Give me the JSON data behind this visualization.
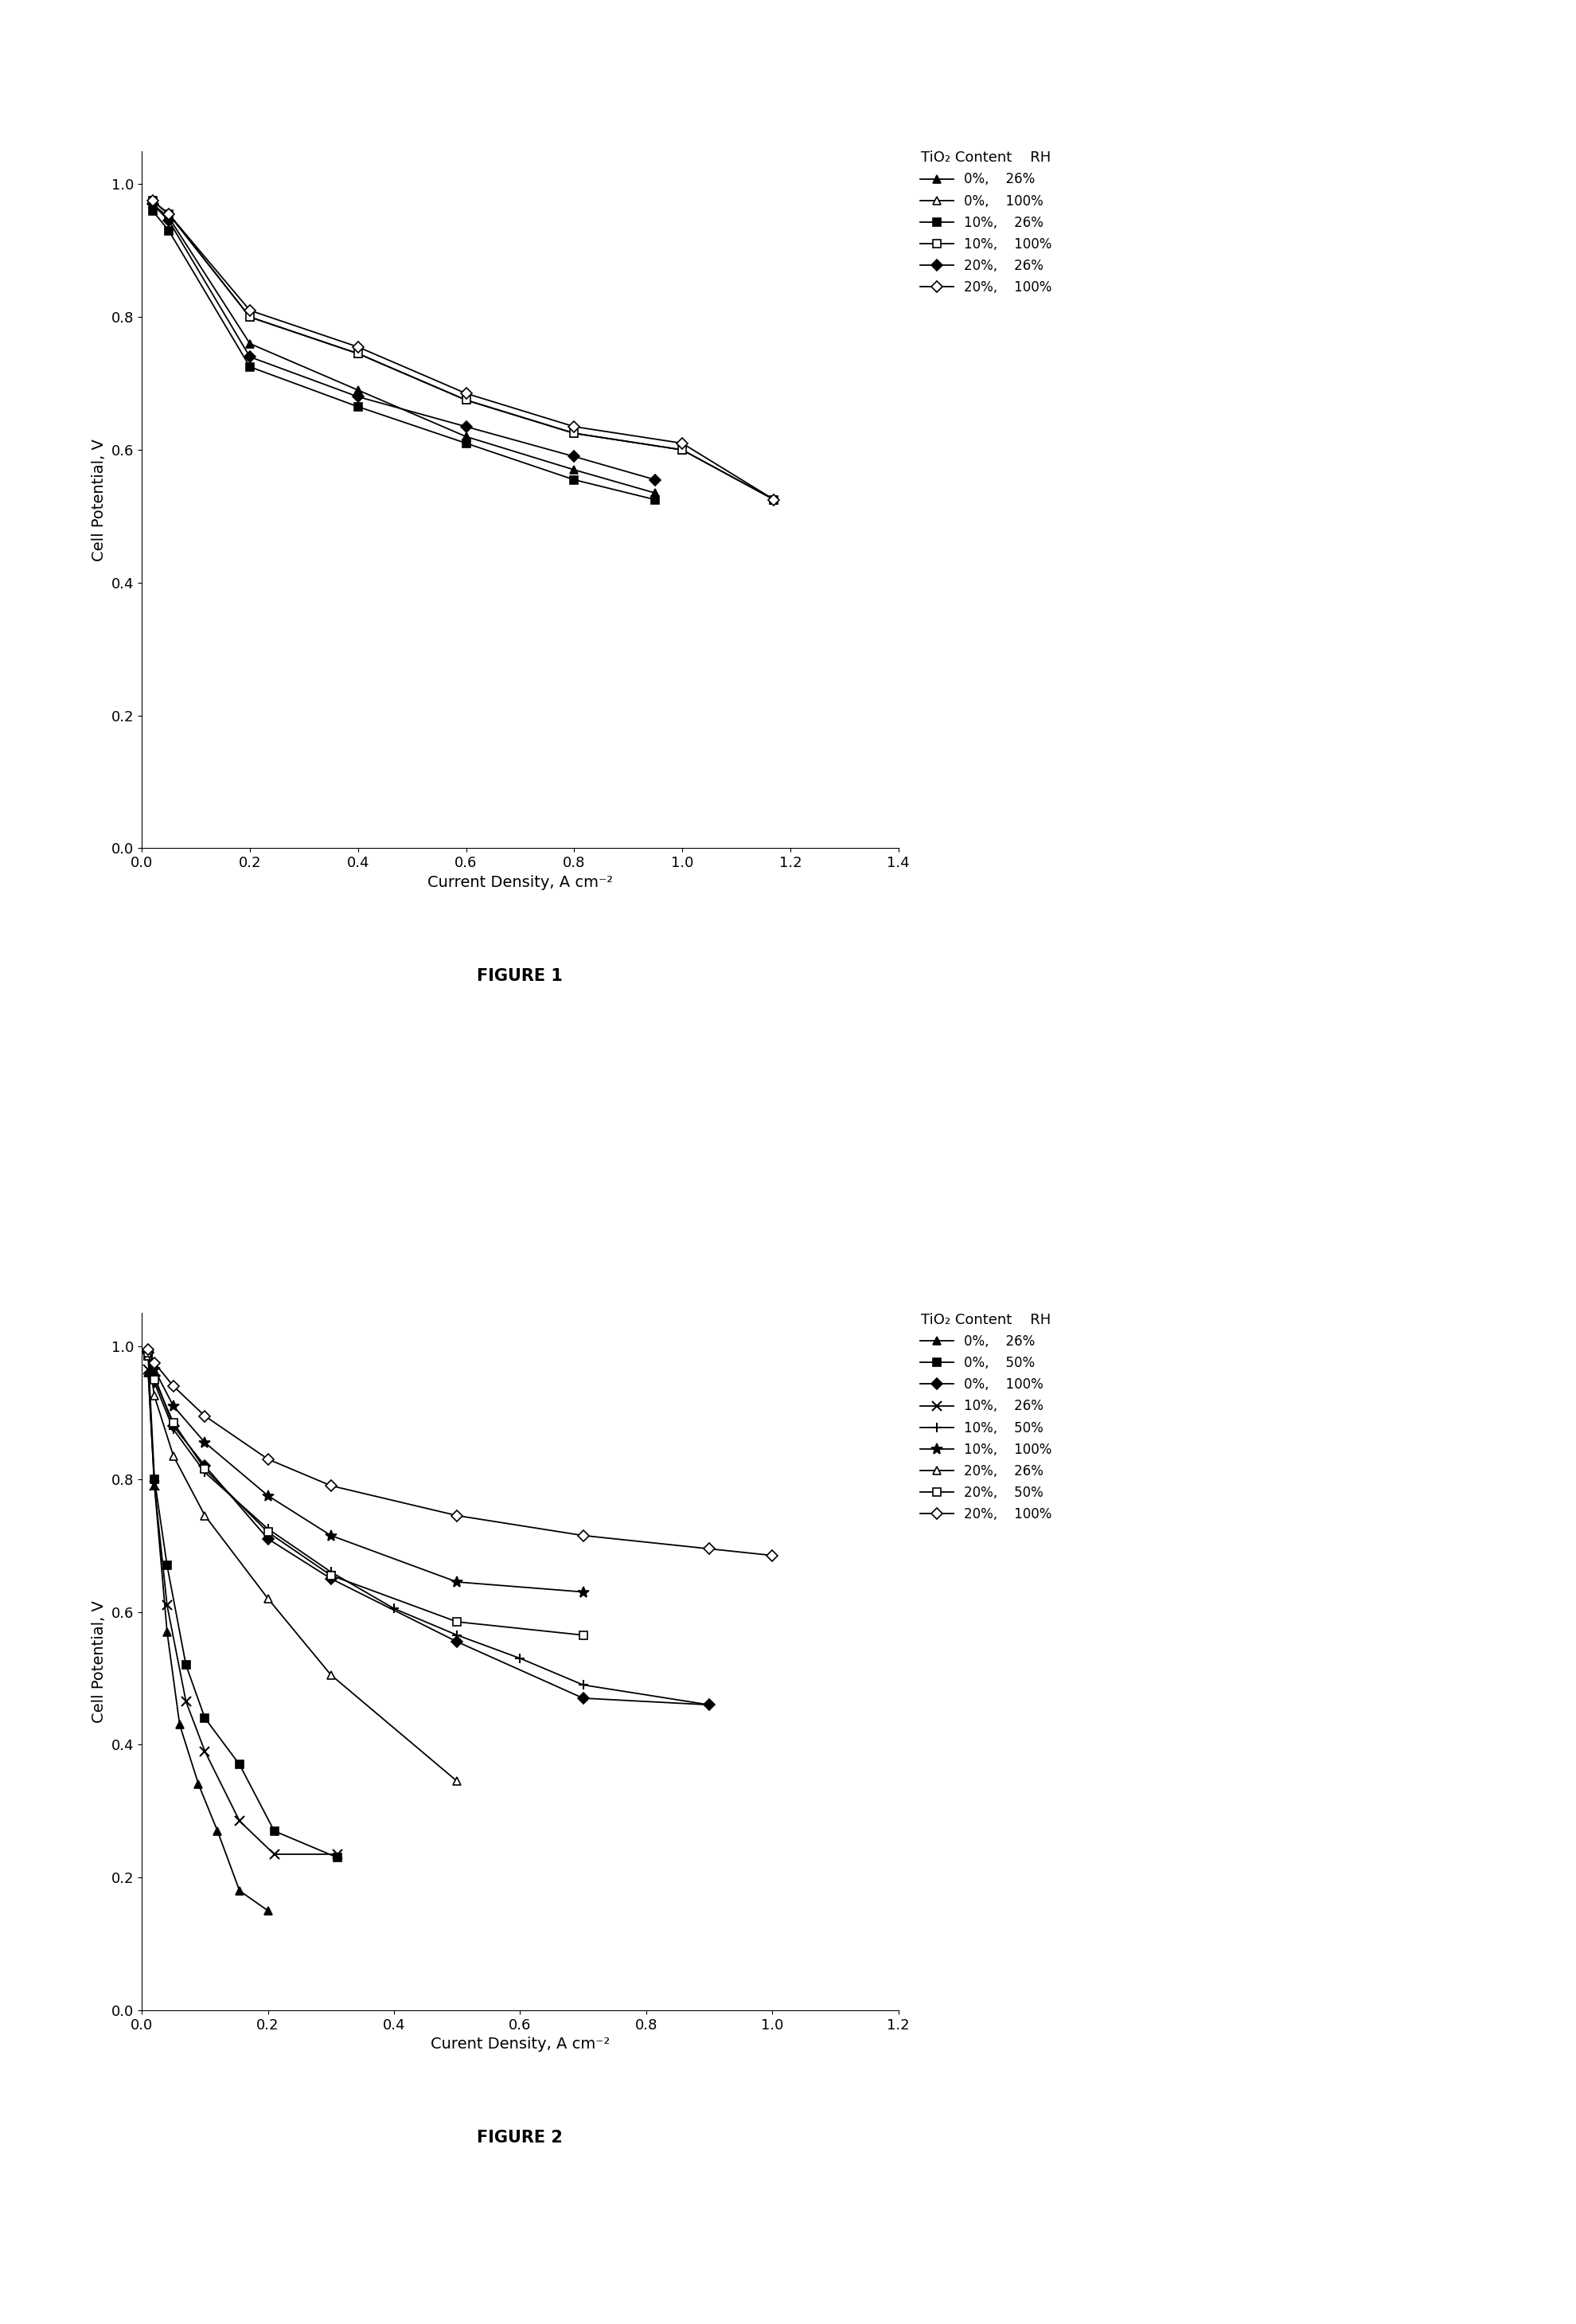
{
  "fig1": {
    "caption": "FIGURE 1",
    "xlabel": "Current Density, A cm⁻²",
    "ylabel": "Cell Potential, V",
    "xlim": [
      0,
      1.4
    ],
    "ylim": [
      0,
      1.05
    ],
    "xticks": [
      0,
      0.2,
      0.4,
      0.6,
      0.8,
      1.0,
      1.2,
      1.4
    ],
    "yticks": [
      0,
      0.2,
      0.4,
      0.6,
      0.8,
      1.0
    ],
    "legend_title": "TiO₂ Content    RH",
    "series": [
      {
        "label": "0%,    26%",
        "marker": "^",
        "filled": true,
        "x": [
          0.02,
          0.05,
          0.2,
          0.4,
          0.6,
          0.8,
          0.95
        ],
        "y": [
          0.97,
          0.95,
          0.76,
          0.69,
          0.62,
          0.57,
          0.535
        ]
      },
      {
        "label": "0%,    100%",
        "marker": "^",
        "filled": false,
        "x": [
          0.02,
          0.05,
          0.2,
          0.4,
          0.6,
          0.8,
          1.0,
          1.17
        ],
        "y": [
          0.975,
          0.955,
          0.8,
          0.745,
          0.675,
          0.625,
          0.6,
          0.525
        ]
      },
      {
        "label": "10%,    26%",
        "marker": "s",
        "filled": true,
        "x": [
          0.02,
          0.05,
          0.2,
          0.4,
          0.6,
          0.8,
          0.95
        ],
        "y": [
          0.96,
          0.93,
          0.725,
          0.665,
          0.61,
          0.555,
          0.525
        ]
      },
      {
        "label": "10%,    100%",
        "marker": "s",
        "filled": false,
        "x": [
          0.02,
          0.05,
          0.2,
          0.4,
          0.6,
          0.8,
          1.0,
          1.17
        ],
        "y": [
          0.975,
          0.955,
          0.8,
          0.745,
          0.675,
          0.625,
          0.6,
          0.525
        ]
      },
      {
        "label": "20%,    26%",
        "marker": "D",
        "filled": true,
        "x": [
          0.02,
          0.05,
          0.2,
          0.4,
          0.6,
          0.8,
          0.95
        ],
        "y": [
          0.97,
          0.945,
          0.74,
          0.68,
          0.635,
          0.59,
          0.555
        ]
      },
      {
        "label": "20%,    100%",
        "marker": "D",
        "filled": false,
        "x": [
          0.02,
          0.05,
          0.2,
          0.4,
          0.6,
          0.8,
          1.0,
          1.17
        ],
        "y": [
          0.975,
          0.955,
          0.81,
          0.755,
          0.685,
          0.635,
          0.61,
          0.525
        ]
      }
    ]
  },
  "fig2": {
    "caption": "FIGURE 2",
    "xlabel": "Curent Density, A cm⁻²",
    "ylabel": "Cell Potential, V",
    "xlim": [
      0,
      1.2
    ],
    "ylim": [
      0,
      1.05
    ],
    "xticks": [
      0,
      0.2,
      0.4,
      0.6,
      0.8,
      1.0,
      1.2
    ],
    "yticks": [
      0,
      0.2,
      0.4,
      0.6,
      0.8,
      1.0
    ],
    "legend_title": "TiO₂ Content    RH",
    "series": [
      {
        "label": "0%,    26%",
        "marker": "^",
        "filled": true,
        "x": [
          0.01,
          0.02,
          0.04,
          0.06,
          0.09,
          0.12,
          0.155,
          0.2
        ],
        "y": [
          0.96,
          0.79,
          0.57,
          0.43,
          0.34,
          0.27,
          0.18,
          0.15
        ]
      },
      {
        "label": "0%,    50%",
        "marker": "s",
        "filled": true,
        "x": [
          0.01,
          0.02,
          0.04,
          0.07,
          0.1,
          0.155,
          0.21,
          0.31
        ],
        "y": [
          0.985,
          0.8,
          0.67,
          0.52,
          0.44,
          0.37,
          0.27,
          0.23
        ]
      },
      {
        "label": "0%,    100%",
        "marker": "D",
        "filled": true,
        "x": [
          0.01,
          0.02,
          0.05,
          0.1,
          0.2,
          0.3,
          0.5,
          0.7,
          0.9
        ],
        "y": [
          0.99,
          0.955,
          0.88,
          0.82,
          0.71,
          0.65,
          0.555,
          0.47,
          0.46
        ]
      },
      {
        "label": "10%,    26%",
        "marker": "x",
        "filled": true,
        "x": [
          0.01,
          0.02,
          0.04,
          0.07,
          0.1,
          0.155,
          0.21,
          0.31
        ],
        "y": [
          0.965,
          0.79,
          0.61,
          0.465,
          0.39,
          0.285,
          0.235,
          0.235
        ]
      },
      {
        "label": "10%,    50%",
        "marker": "+",
        "filled": true,
        "x": [
          0.01,
          0.02,
          0.05,
          0.1,
          0.2,
          0.3,
          0.4,
          0.5,
          0.6,
          0.7,
          0.9
        ],
        "y": [
          0.99,
          0.945,
          0.875,
          0.81,
          0.725,
          0.66,
          0.605,
          0.565,
          0.53,
          0.49,
          0.46
        ]
      },
      {
        "label": "10%,    100%",
        "marker": "*",
        "filled": true,
        "x": [
          0.01,
          0.02,
          0.05,
          0.1,
          0.2,
          0.3,
          0.5,
          0.7
        ],
        "y": [
          0.99,
          0.965,
          0.91,
          0.855,
          0.775,
          0.715,
          0.645,
          0.63
        ]
      },
      {
        "label": "20%,    26%",
        "marker": "^",
        "filled": false,
        "x": [
          0.01,
          0.02,
          0.05,
          0.1,
          0.2,
          0.3,
          0.5
        ],
        "y": [
          0.985,
          0.925,
          0.835,
          0.745,
          0.62,
          0.505,
          0.345
        ]
      },
      {
        "label": "20%,    50%",
        "marker": "s",
        "filled": false,
        "x": [
          0.01,
          0.02,
          0.05,
          0.1,
          0.2,
          0.3,
          0.5,
          0.7
        ],
        "y": [
          0.99,
          0.95,
          0.885,
          0.815,
          0.72,
          0.655,
          0.585,
          0.565
        ]
      },
      {
        "label": "20%,    100%",
        "marker": "D",
        "filled": false,
        "x": [
          0.01,
          0.02,
          0.05,
          0.1,
          0.2,
          0.3,
          0.5,
          0.7,
          0.9,
          1.0
        ],
        "y": [
          0.995,
          0.975,
          0.94,
          0.895,
          0.83,
          0.79,
          0.745,
          0.715,
          0.695,
          0.685
        ]
      }
    ]
  }
}
